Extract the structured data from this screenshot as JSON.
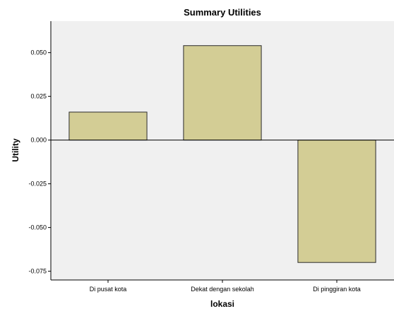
{
  "chart_data": {
    "type": "bar",
    "title": "Summary Utilities",
    "xlabel": "lokasi",
    "ylabel": "Utility",
    "categories": [
      "Di pusat kota",
      "Dekat dengan sekolah",
      "Di pinggiran kota"
    ],
    "values": [
      0.016,
      0.054,
      -0.07
    ],
    "ylim": [
      -0.08,
      0.068
    ],
    "yticks": [
      -0.075,
      -0.05,
      -0.025,
      0.0,
      0.025,
      0.05
    ],
    "ytick_labels": [
      "-0.075",
      "-0.050",
      "-0.025",
      "0.000",
      "0.025",
      "0.050"
    ],
    "grid": false,
    "colors": {
      "bar_fill": "#d3cd95",
      "bar_stroke": "#2b2b2b",
      "plot_background": "#f0f0f0",
      "axis": "#000000"
    }
  }
}
